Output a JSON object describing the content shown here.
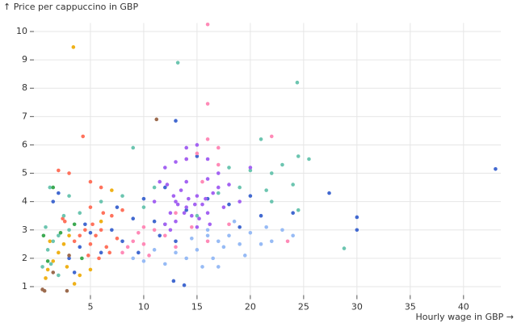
{
  "chart_data": {
    "type": "scatter",
    "y_label": "↑ Price per cappuccino in GBP",
    "x_label": "Hourly wage in GBP →",
    "xlim": [
      -0.3,
      43.5
    ],
    "ylim": [
      0.7,
      10.3
    ],
    "xticks": [
      5,
      10,
      15,
      20,
      25,
      30,
      35,
      40
    ],
    "yticks": [
      1,
      2,
      3,
      4,
      5,
      6,
      7,
      8,
      9,
      10
    ],
    "grid": true,
    "series": [
      {
        "color": "#4269d0",
        "x": [
          43,
          30,
          30,
          27.4,
          24,
          13,
          12.8,
          13.8,
          21,
          18,
          16,
          14,
          11,
          9,
          8,
          7,
          6,
          5,
          4,
          3,
          2,
          1.5,
          10,
          12,
          15,
          20,
          19,
          11.5,
          7.5,
          4.5,
          3.5,
          9.5,
          13
        ],
        "y": [
          5.15,
          3.45,
          3.0,
          4.3,
          3.6,
          6.85,
          1.2,
          1.05,
          3.5,
          3.9,
          4.1,
          3.7,
          3.3,
          3.4,
          2.6,
          3.0,
          2.2,
          2.9,
          2.4,
          2.0,
          4.3,
          4.0,
          4.1,
          4.5,
          5.6,
          4.2,
          3.1,
          2.8,
          3.8,
          3.2,
          1.5,
          2.2,
          2.6
        ]
      },
      {
        "color": "#efb118",
        "x": [
          3.4,
          1,
          1.5,
          2,
          2.5,
          3,
          3.5,
          4,
          1.2,
          0.8,
          5,
          2.8,
          6,
          7
        ],
        "y": [
          9.45,
          1.6,
          1.9,
          2.2,
          2.5,
          2.8,
          1.1,
          1.4,
          2.6,
          1.3,
          1.6,
          1.7,
          3.3,
          4.4
        ]
      },
      {
        "color": "#ff725c",
        "x": [
          4.3,
          2,
          3,
          2.4,
          5,
          5.5,
          6,
          6.5,
          7,
          5,
          4.8,
          6.2,
          5.8,
          4.5,
          7.5,
          3.5,
          5.2,
          6.8,
          4,
          8,
          2.6,
          5,
          6
        ],
        "y": [
          6.3,
          5.1,
          5.0,
          3.4,
          2.5,
          2.8,
          3.0,
          2.4,
          3.5,
          3.8,
          2.1,
          3.6,
          2.0,
          3.0,
          2.7,
          2.6,
          3.2,
          2.2,
          2.8,
          3.7,
          3.3,
          4.7,
          4.5
        ]
      },
      {
        "color": "#6cc5b0",
        "x": [
          13.2,
          24.4,
          21,
          23,
          24.5,
          25.5,
          22,
          20,
          18,
          19,
          21.5,
          24,
          22,
          1,
          1.5,
          2,
          2.5,
          3,
          4,
          1.3,
          0.5,
          2,
          9,
          6,
          8,
          10,
          11,
          12,
          15,
          17,
          3,
          1.2,
          0.8,
          24.5,
          28.8
        ],
        "y": [
          8.9,
          8.2,
          6.2,
          5.3,
          5.6,
          5.5,
          5.0,
          5.1,
          5.2,
          4.5,
          4.4,
          4.6,
          4.0,
          2.3,
          2.6,
          2.8,
          3.5,
          3.0,
          3.6,
          1.8,
          1.7,
          1.4,
          5.9,
          4.0,
          4.2,
          3.8,
          4.5,
          3.2,
          3.5,
          4.3,
          4.2,
          4.5,
          3.1,
          3.7,
          2.35
        ]
      },
      {
        "color": "#3ca951",
        "x": [
          1.5,
          2.2,
          1,
          3.5,
          4.2,
          0.6
        ],
        "y": [
          4.5,
          2.9,
          1.9,
          3.2,
          2.0,
          2.8
        ]
      },
      {
        "color": "#ff8ab7",
        "x": [
          16,
          16,
          16,
          17,
          15,
          14,
          22,
          23.5,
          13,
          10,
          9,
          8.5,
          10.5,
          11,
          9.5,
          8,
          12,
          13,
          14.5,
          16,
          18,
          17,
          15.5,
          10
        ],
        "y": [
          10.25,
          7.45,
          6.2,
          5.9,
          5.7,
          5.5,
          6.3,
          2.6,
          3.6,
          3.1,
          2.6,
          2.4,
          2.1,
          3.0,
          2.9,
          2.2,
          2.8,
          2.4,
          3.1,
          2.6,
          3.2,
          5.3,
          4.7,
          2.5
        ]
      },
      {
        "color": "#a463f2",
        "x": [
          12,
          12.5,
          13,
          13.5,
          14,
          14.5,
          15,
          15.5,
          16,
          16.5,
          12.2,
          13,
          14,
          15,
          16,
          12.8,
          13.8,
          14.8,
          15.8,
          17,
          18,
          19,
          17.5,
          12,
          13,
          14,
          16,
          15,
          14,
          11,
          12.5,
          13.2,
          14.2,
          15.2,
          16.2,
          20,
          11.5,
          17
        ],
        "y": [
          3.2,
          3.6,
          4.0,
          4.4,
          3.8,
          3.5,
          4.2,
          3.9,
          3.6,
          4.3,
          4.6,
          3.3,
          4.7,
          3.1,
          4.8,
          4.2,
          3.6,
          3.9,
          4.1,
          4.5,
          4.6,
          4.0,
          3.8,
          5.2,
          5.4,
          5.5,
          5.5,
          6.0,
          5.9,
          4.0,
          3.0,
          3.9,
          4.1,
          3.4,
          3.2,
          5.2,
          4.7,
          5.0
        ]
      },
      {
        "color": "#97bbf5",
        "x": [
          16,
          17,
          15,
          14,
          16.5,
          17.5,
          18,
          19,
          20,
          21,
          15.5,
          13,
          12,
          11,
          10,
          9,
          22,
          21.5,
          23,
          24,
          18.5,
          16,
          14.5,
          19.5,
          17
        ],
        "y": [
          2.8,
          2.6,
          2.3,
          2.0,
          2.0,
          2.4,
          2.8,
          2.5,
          2.9,
          2.5,
          1.7,
          2.2,
          1.8,
          2.3,
          1.9,
          2.0,
          2.6,
          3.1,
          3.0,
          2.8,
          3.3,
          3.0,
          2.7,
          2.1,
          1.7
        ]
      },
      {
        "color": "#9c6b4e",
        "x": [
          11.2,
          0.5,
          0.7,
          2.8,
          1.5,
          3
        ],
        "y": [
          6.9,
          0.9,
          0.85,
          0.85,
          1.5,
          2.1
        ]
      }
    ]
  }
}
